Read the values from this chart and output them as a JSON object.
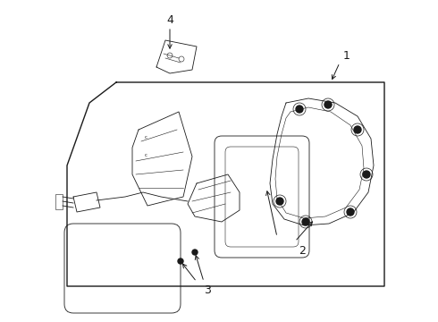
{
  "bg_color": "#ffffff",
  "line_color": "#1a1a1a",
  "fig_width": 4.9,
  "fig_height": 3.6,
  "dpi": 100,
  "label_fontsize": 9,
  "lw_main": 1.0,
  "lw_detail": 0.6,
  "lw_thin": 0.4
}
